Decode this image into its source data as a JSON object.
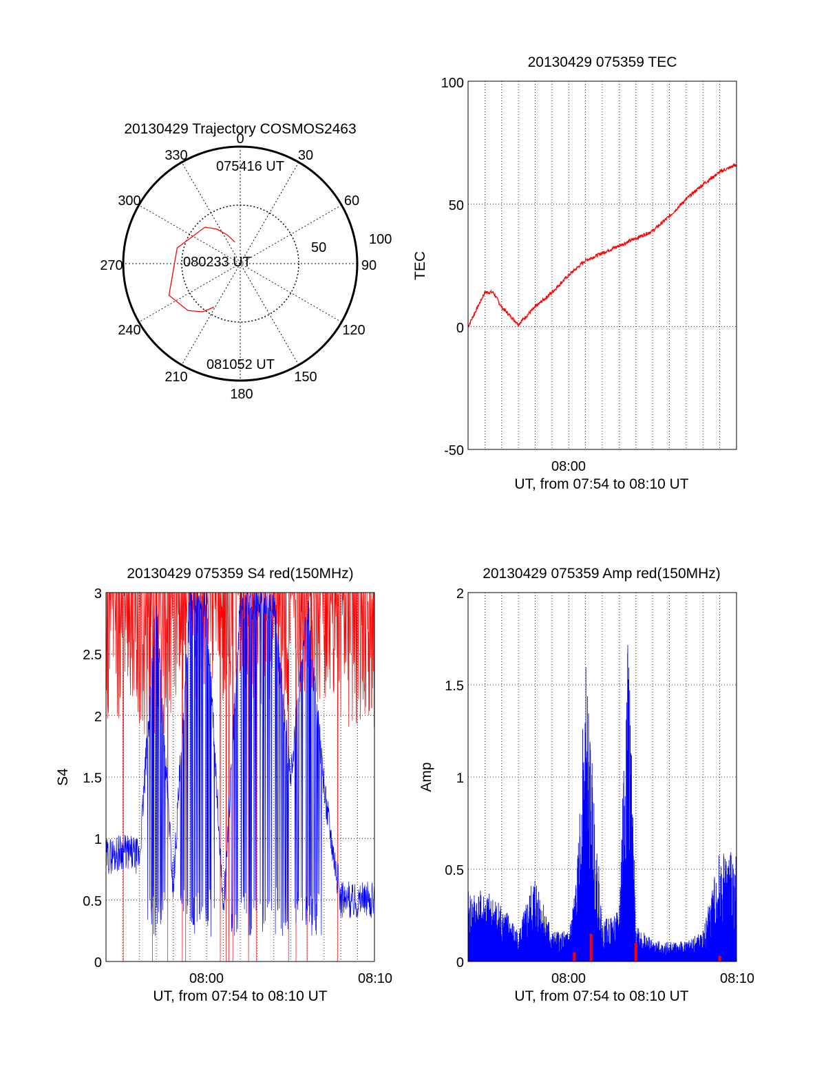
{
  "colors": {
    "background": "#ffffff",
    "axes": "#000000",
    "red_trace": "#ff0000",
    "blue_trace": "#0000ff",
    "grid": "#000000"
  },
  "chart_data": [
    {
      "type": "polar",
      "title": "20130429 Trajectory COSMOS2463",
      "azimuth_labels": [
        "0",
        "30",
        "60",
        "90",
        "120",
        "150",
        "180",
        "210",
        "240",
        "270",
        "300",
        "330"
      ],
      "radius_labels": [
        "50",
        "100"
      ],
      "rlim": [
        0,
        100
      ],
      "grid": true,
      "track_points": [
        [
          346,
          73
        ],
        [
          336,
          66
        ],
        [
          326,
          58
        ],
        [
          316,
          51
        ],
        [
          284,
          40
        ],
        [
          246,
          30
        ],
        [
          228,
          36
        ],
        [
          218,
          43
        ],
        [
          211,
          51
        ]
      ],
      "annotations": [
        "075416 UT",
        "080233 UT",
        "081052 UT"
      ],
      "series": [
        {
          "color": "#ff0000"
        }
      ]
    },
    {
      "type": "line",
      "title": "20130429 075359 TEC",
      "ylabel": "TEC",
      "xlabel": "UT, from 07:54 to 08:10 UT",
      "xlim": [
        "07:54",
        "08:10"
      ],
      "ylim": [
        -50,
        100
      ],
      "yticks": [
        "-50",
        "0",
        "50",
        "100"
      ],
      "xticks": [
        "08:00"
      ],
      "grid": true,
      "series": [
        {
          "color": "#ff0000",
          "x": [
            "07:54",
            "07:55",
            "07:55:30",
            "07:56",
            "07:57",
            "07:58",
            "07:59",
            "08:00",
            "08:01",
            "08:02",
            "08:03",
            "08:04",
            "08:05",
            "08:06",
            "08:07",
            "08:08",
            "08:09",
            "08:10"
          ],
          "values": [
            0,
            14,
            14,
            8,
            1,
            8,
            14,
            21,
            27,
            30,
            33,
            36,
            39,
            45,
            52,
            58,
            63,
            66
          ]
        }
      ]
    },
    {
      "type": "line",
      "title": "20130429 075359 S4 red(150MHz)",
      "ylabel": "S4",
      "xlabel": "UT, from 07:54 to 08:10 UT",
      "xlim": [
        "07:54",
        "08:10"
      ],
      "ylim": [
        0,
        3
      ],
      "yticks": [
        "0",
        "0.5",
        "1",
        "1.5",
        "2",
        "2.5",
        "3"
      ],
      "xticks": [
        "08:00",
        "08:10"
      ],
      "grid": true,
      "series": [
        {
          "color": "#ff0000",
          "x": [
            "07:54",
            "07:55",
            "07:56",
            "07:57",
            "07:58",
            "07:59",
            "08:00",
            "08:01",
            "08:02",
            "08:03",
            "08:04",
            "08:05",
            "08:06",
            "08:07",
            "08:08",
            "08:09",
            "08:10"
          ],
          "values": [
            2.5,
            2.5,
            2.4,
            2.3,
            2.6,
            2.7,
            2.7,
            2.7,
            2.8,
            2.7,
            2.5,
            2.6,
            2.6,
            2.7,
            2.5,
            2.4,
            2.4
          ]
        },
        {
          "color": "#0000ff",
          "x": [
            "07:54",
            "07:55",
            "07:56",
            "07:57",
            "07:58",
            "07:59",
            "08:00",
            "08:01",
            "08:02",
            "08:03",
            "08:04",
            "08:05",
            "08:06",
            "08:07",
            "08:08",
            "08:09",
            "08:10"
          ],
          "values": [
            0.85,
            0.9,
            0.85,
            2.9,
            0.6,
            2.9,
            2.9,
            0.4,
            2.9,
            2.9,
            2.9,
            1.5,
            2.9,
            1.4,
            0.5,
            0.5,
            0.5
          ]
        }
      ]
    },
    {
      "type": "line",
      "title": "20130429 075359 Amp red(150MHz)",
      "ylabel": "Amp",
      "xlabel": "UT, from 07:54 to 08:10 UT",
      "xlim": [
        "07:54",
        "08:10"
      ],
      "ylim": [
        0,
        2
      ],
      "yticks": [
        "0",
        "0.5",
        "1",
        "1.5",
        "2"
      ],
      "xticks": [
        "08:00",
        "08:10"
      ],
      "grid": true,
      "series": [
        {
          "color": "#0000ff",
          "x": [
            "07:54",
            "07:55",
            "07:56",
            "07:57",
            "07:58",
            "07:59",
            "08:00",
            "08:00:30",
            "08:01",
            "08:02",
            "08:03",
            "08:03:30",
            "08:04",
            "08:05",
            "08:06",
            "08:07",
            "08:08",
            "08:09",
            "08:10"
          ],
          "values": [
            0.35,
            0.35,
            0.3,
            0.15,
            0.45,
            0.15,
            0.15,
            0.45,
            1.5,
            0.2,
            0.25,
            1.8,
            0.2,
            0.1,
            0.1,
            0.1,
            0.15,
            0.55,
            0.55
          ]
        },
        {
          "color": "#ff0000",
          "x": [
            "08:00:20",
            "08:01:20",
            "08:04:00",
            "08:09:00"
          ],
          "values": [
            0.05,
            0.15,
            0.1,
            0.03
          ]
        }
      ]
    }
  ]
}
